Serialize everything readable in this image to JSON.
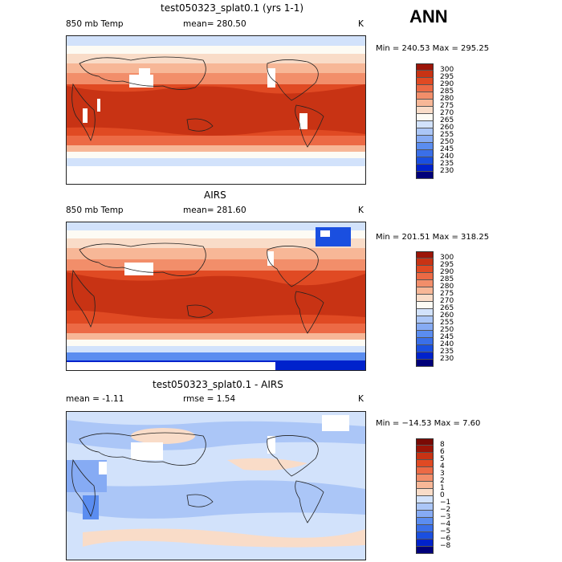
{
  "season": "ANN",
  "colors": {
    "temp": [
      "#00007a",
      "#0022cc",
      "#1a4fe0",
      "#3a6fe8",
      "#5b8df0",
      "#86abf4",
      "#abc6f7",
      "#d2e2fb",
      "#fdfbf4",
      "#f9dcc8",
      "#f7b797",
      "#f28e6a",
      "#ec6a45",
      "#e04a23",
      "#c83314",
      "#9c1508"
    ],
    "diff": [
      "#00007a",
      "#0022cc",
      "#1a4fe0",
      "#3a6fe8",
      "#5b8df0",
      "#86abf4",
      "#abc6f7",
      "#d2e2fb",
      "#f9dcc8",
      "#f7b797",
      "#f28e6a",
      "#ec6a45",
      "#e04a23",
      "#c83314",
      "#9c1508",
      "#7a0a05"
    ]
  },
  "panels": [
    {
      "title": "test050323_splat0.1 (yrs 1-1)",
      "left_label": "850 mb Temp",
      "center_label": "mean= 280.50",
      "units": "K",
      "minmax": "Min = 240.53 Max = 295.25",
      "colorbar_labels": [
        "300",
        "295",
        "290",
        "285",
        "280",
        "275",
        "270",
        "265",
        "260",
        "255",
        "250",
        "245",
        "240",
        "235",
        "230"
      ]
    },
    {
      "title": "AIRS",
      "left_label": "850 mb Temp",
      "center_label": "mean= 281.60",
      "units": "K",
      "minmax": "Min = 201.51 Max = 318.25",
      "colorbar_labels": [
        "300",
        "295",
        "290",
        "285",
        "280",
        "275",
        "270",
        "265",
        "260",
        "255",
        "250",
        "245",
        "240",
        "235",
        "230"
      ]
    },
    {
      "title": "test050323_splat0.1 - AIRS",
      "left_label": "mean =  -1.11",
      "center_label": "rmse =   1.54",
      "units": "K",
      "minmax": "Min = −14.53 Max =   7.60",
      "colorbar_labels": [
        "8",
        "6",
        "5",
        "4",
        "3",
        "2",
        "1",
        "0",
        "−1",
        "−2",
        "−3",
        "−4",
        "−5",
        "−6",
        "−8"
      ]
    }
  ]
}
